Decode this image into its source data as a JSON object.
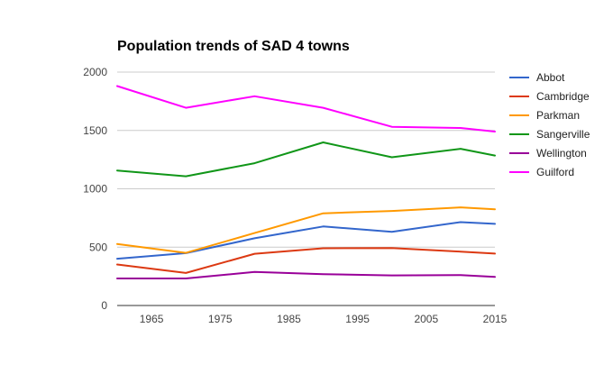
{
  "chart_data": {
    "type": "line",
    "title": "Population trends of SAD 4 towns",
    "xlabel": "",
    "ylabel": "",
    "xlim": [
      1960,
      2015
    ],
    "ylim": [
      0,
      2000
    ],
    "xticks": [
      1965,
      1975,
      1985,
      1995,
      2005,
      2015
    ],
    "yticks": [
      0,
      500,
      1000,
      1500,
      2000
    ],
    "grid": "horizontal",
    "legend_position": "right",
    "x": [
      1960,
      1970,
      1980,
      1990,
      2000,
      2010,
      2015
    ],
    "series": [
      {
        "name": "Abbot",
        "color": "#3366cc",
        "values": [
          401,
          449,
          576,
          677,
          632,
          714,
          700
        ]
      },
      {
        "name": "Cambridge",
        "color": "#dc3912",
        "values": [
          351,
          279,
          443,
          490,
          493,
          462,
          445
        ]
      },
      {
        "name": "Parkman",
        "color": "#ff9900",
        "values": [
          527,
          451,
          621,
          790,
          810,
          841,
          825
        ]
      },
      {
        "name": "Sangerville",
        "color": "#109618",
        "values": [
          1157,
          1107,
          1219,
          1398,
          1270,
          1343,
          1285
        ]
      },
      {
        "name": "Wellington",
        "color": "#990099",
        "values": [
          232,
          232,
          287,
          269,
          258,
          261,
          245
        ]
      },
      {
        "name": "Guilford",
        "color": "#ff00ff",
        "values": [
          1880,
          1694,
          1793,
          1694,
          1531,
          1521,
          1490
        ]
      }
    ]
  }
}
